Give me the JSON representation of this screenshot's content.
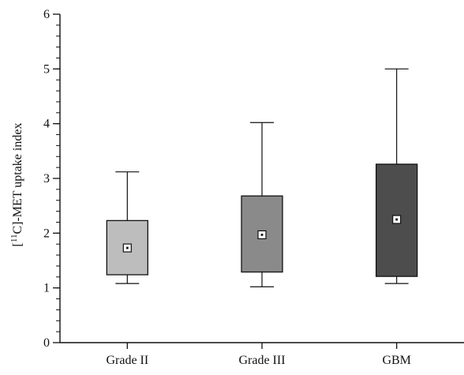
{
  "chart_data": {
    "type": "box",
    "title": "",
    "xlabel": "",
    "ylabel": "-MET uptake index",
    "ylabel_prefix": "[",
    "ylabel_superscript": "11",
    "ylabel_isotope": "C]",
    "ylim": [
      0,
      6
    ],
    "yticks": [
      "0",
      "1",
      "2",
      "3",
      "4",
      "5",
      "6"
    ],
    "y_minor_step": 0.2,
    "grid": false,
    "legend": "none",
    "categories": [
      "Grade II",
      "Grade III",
      "GBM"
    ],
    "boxes": [
      {
        "category": "Grade II",
        "whisker_low": 1.08,
        "q1": 1.24,
        "q3": 2.23,
        "whisker_high": 3.12,
        "mean": 1.73,
        "color": "#bdbdbd"
      },
      {
        "category": "Grade III",
        "whisker_low": 1.02,
        "q1": 1.29,
        "q3": 2.68,
        "whisker_high": 4.02,
        "mean": 1.97,
        "color": "#8a8a8a"
      },
      {
        "category": "GBM",
        "whisker_low": 1.08,
        "q1": 1.21,
        "q3": 3.26,
        "whisker_high": 5.0,
        "mean": 2.25,
        "color": "#4d4d4d"
      }
    ]
  }
}
